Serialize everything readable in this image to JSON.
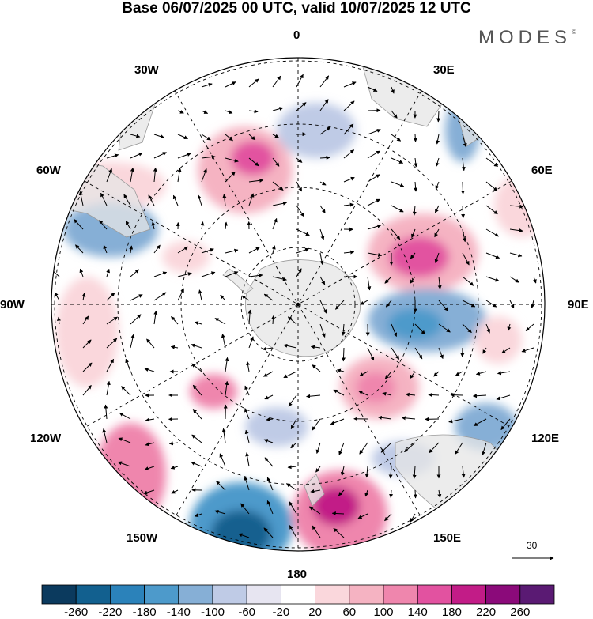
{
  "title": "Base 06/07/2025 00 UTC, valid 10/07/2025 12 UTC",
  "brand": "MODES",
  "brand_mark": "©",
  "longitude_labels": {
    "top": "0",
    "bottom": "180",
    "left": "90W",
    "right": "90E",
    "nnw": "30W",
    "nne": "30E",
    "wnw": "60W",
    "ene": "60E",
    "wsw": "120W",
    "ese": "120E",
    "ssw": "150W",
    "sse": "150E"
  },
  "vector_reference": {
    "label": "30"
  },
  "colorbar": {
    "labels": [
      "-260",
      "-220",
      "-180",
      "-140",
      "-100",
      "-60",
      "-20",
      "20",
      "60",
      "100",
      "140",
      "180",
      "220",
      "260"
    ],
    "colors": [
      "#0b3a5e",
      "#12608f",
      "#2b82ba",
      "#4d9acb",
      "#86afd6",
      "#bfcbe6",
      "#e7e5f1",
      "#ffffff",
      "#fad7dc",
      "#f5b3c2",
      "#ef86ad",
      "#e252a0",
      "#c21c87",
      "#8b0a7a",
      "#5a1a73"
    ]
  },
  "map": {
    "projection": "south polar stereographic",
    "land_color": "#e6e6e6",
    "anomalies": [
      {
        "name": "pos-nw",
        "value": 160
      },
      {
        "name": "neg-n",
        "value": -60
      },
      {
        "name": "pos-ne",
        "value": 180
      },
      {
        "name": "neg-e",
        "value": -140
      },
      {
        "name": "pos-se",
        "value": 140
      },
      {
        "name": "pos-s",
        "value": 200
      },
      {
        "name": "neg-s",
        "value": -220
      },
      {
        "name": "pos-sw",
        "value": 120
      },
      {
        "name": "neg-w",
        "value": -100
      },
      {
        "name": "neg-se2",
        "value": -100
      },
      {
        "name": "pos-c",
        "value": 100
      }
    ]
  }
}
